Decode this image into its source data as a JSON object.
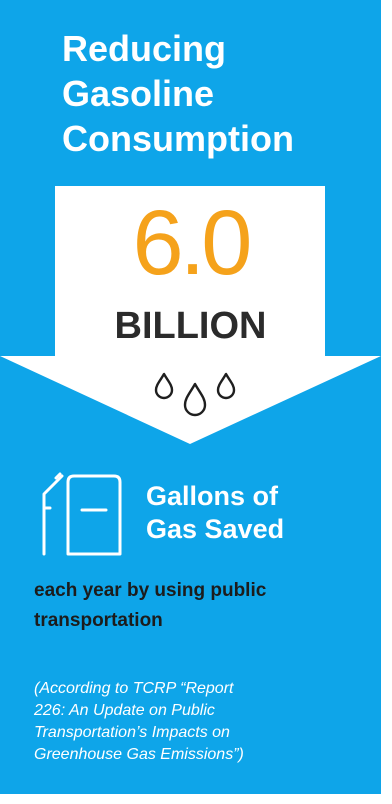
{
  "header": {
    "title_lines": [
      "Reducing",
      "Gasoline",
      "Consumption"
    ]
  },
  "stat": {
    "value": "6.0",
    "unit": "BILLION"
  },
  "icons": {
    "drops": "water-drops-icon",
    "pump": "gas-pump-icon"
  },
  "gallons": {
    "line1": "Gallons of",
    "line2": "Gas Saved"
  },
  "description": {
    "line1": "each year by using public",
    "line2": "transportation"
  },
  "citation": {
    "line1": "(According to TCRP “Report",
    "line2": "226: An Update on Public",
    "line3": "Transportation’s Impacts on",
    "line4": "Greenhouse Gas Emissions”)"
  },
  "colors": {
    "background": "#0ea5e9",
    "arrow": "#ffffff",
    "accent_orange": "#f5a21b",
    "dark_text": "#2b2b2b"
  }
}
